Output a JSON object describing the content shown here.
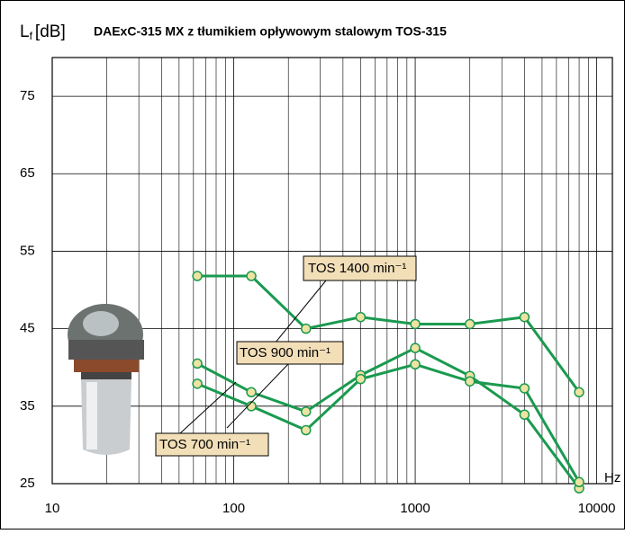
{
  "chart_data": {
    "type": "line",
    "title": "DAExC-315 MX z tłumikiem opływowym stalowym TOS-315",
    "y_label": "L",
    "y_label_sub": "f",
    "y_label_unit": "[dB]",
    "x_unit": "Hz",
    "x": [
      63,
      125,
      250,
      500,
      1000,
      2000,
      4000,
      8000
    ],
    "x_log": true,
    "xlim": [
      10,
      12200
    ],
    "xticks": [
      10,
      100,
      1000,
      10000
    ],
    "ylim": [
      25,
      80
    ],
    "yticks": [
      25,
      35,
      45,
      55,
      65,
      75
    ],
    "grid": true,
    "series": [
      {
        "name": "TOS 1400 min⁻¹",
        "color": "#1a9a4f",
        "values": [
          51.8,
          51.8,
          45.0,
          46.5,
          45.6,
          45.6,
          46.5,
          36.8
        ]
      },
      {
        "name": "TOS 900 min⁻¹",
        "color": "#1a9a4f",
        "values": [
          40.5,
          36.8,
          34.3,
          39.0,
          42.5,
          38.9,
          33.9,
          24.4
        ]
      },
      {
        "name": "TOS 700 min⁻¹",
        "color": "#1a9a4f",
        "values": [
          37.9,
          35.0,
          31.9,
          38.5,
          40.4,
          38.2,
          37.3,
          25.2
        ]
      }
    ]
  }
}
